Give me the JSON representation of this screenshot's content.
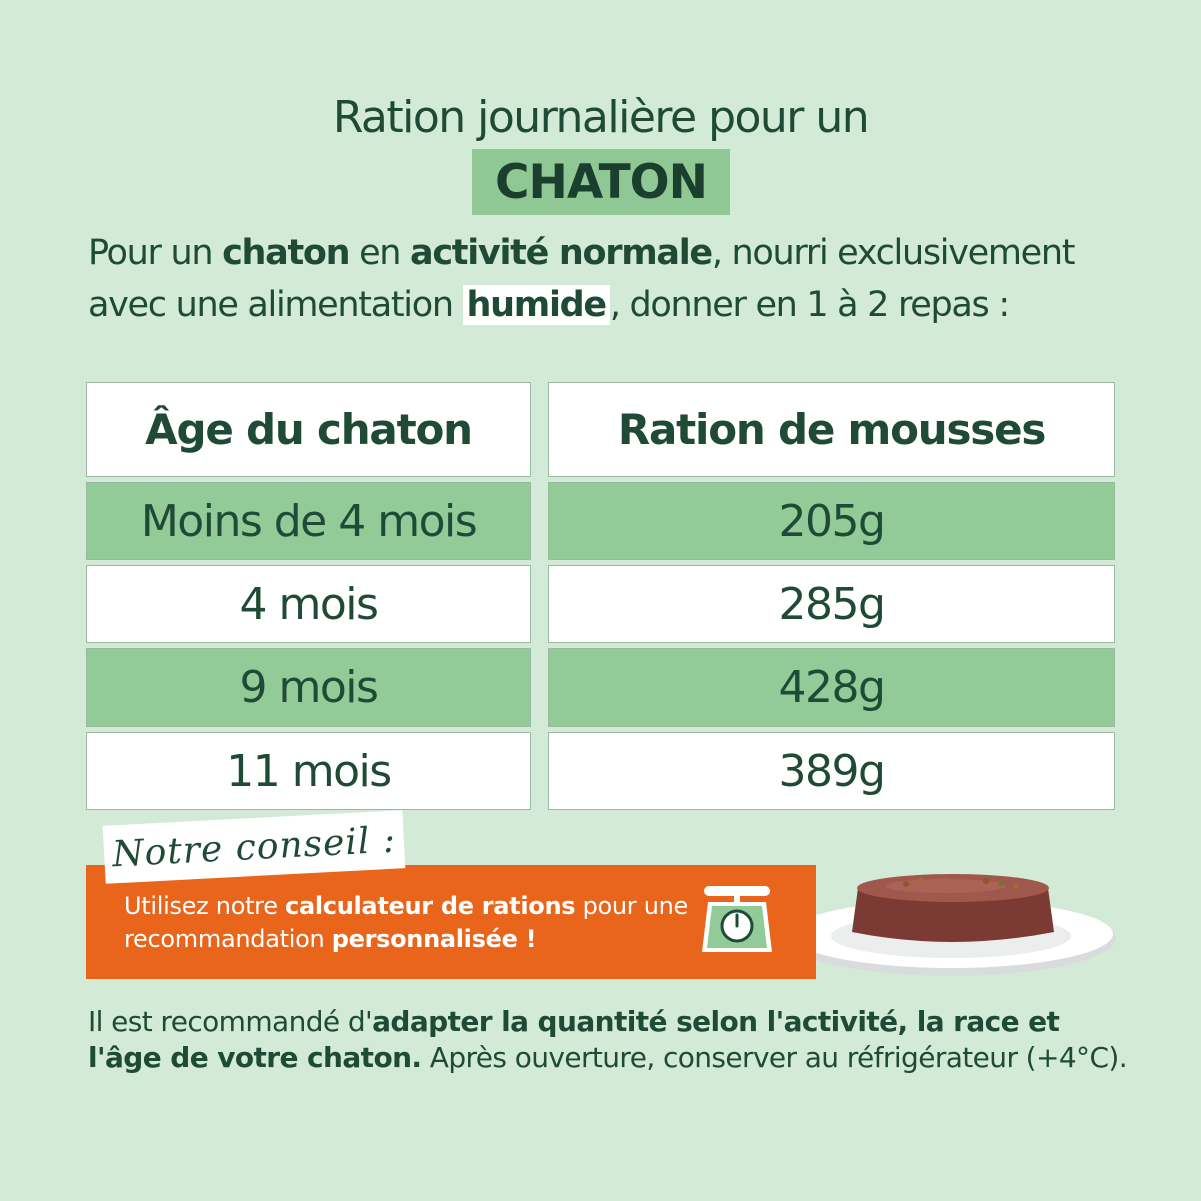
{
  "title": {
    "line1": "Ration journalière pour un",
    "highlight": "CHATON"
  },
  "intro": {
    "p1": "Pour un ",
    "b1": "chaton",
    "p2": " en ",
    "b2": "activité normale",
    "p3": ", nourri exclusivement avec une alimentation ",
    "b3": "humide",
    "p4": ", donner en 1 à 2 repas :"
  },
  "table": {
    "headers": [
      "Âge du chaton",
      "Ration de mousses"
    ],
    "rows": [
      {
        "age": "Moins de 4 mois",
        "ration": "205g",
        "style": "green"
      },
      {
        "age": "4 mois",
        "ration": "285g",
        "style": "white"
      },
      {
        "age": "9 mois",
        "ration": "428g",
        "style": "green"
      },
      {
        "age": "11 mois",
        "ration": "389g",
        "style": "white"
      }
    ]
  },
  "conseil": {
    "tag": "Notre conseil :",
    "t1": "Utilisez notre ",
    "b1": "calculateur de rations",
    "t2": " pour une recommandation ",
    "b2": "personnalisée !"
  },
  "footer": {
    "t1": "Il est recommandé d'",
    "b1": "adapter la quantité selon l'activité, la race et l'âge de votre chaton.",
    "t2": " Après ouverture, conserver au réfrigérateur (+4°C)."
  },
  "icons": {
    "scale": "kitchen-scale-icon",
    "dish": "pate-on-plate-image"
  },
  "colors": {
    "background": "#d3ebd6",
    "dark_green": "#1f4a35",
    "accent_green": "#93cb98",
    "orange": "#e8651b"
  }
}
